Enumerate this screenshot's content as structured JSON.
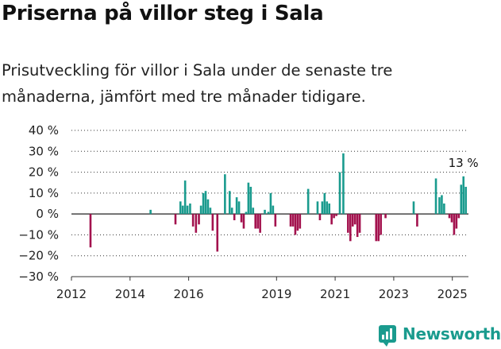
{
  "title": "Priserna på villor steg i Sala",
  "subtitle": "Prisutveckling för villor i Sala under de senaste tre månaderna, jämfört med tre månader tidigare.",
  "brand": {
    "name": "Newsworthy",
    "icon": "newsworthy-logo-icon"
  },
  "colors": {
    "positive": "#1a9b8e",
    "negative": "#a3124e",
    "axis": "#333333",
    "grid": "#333333"
  },
  "chart_data": {
    "type": "bar",
    "yTicks": [
      "40 %",
      "30 %",
      "20 %",
      "10 %",
      "0 %",
      "−10 %",
      "−20 %",
      "−30 %"
    ],
    "ylim": [
      -30,
      40
    ],
    "xTicks": [
      "2012",
      "2014",
      "2016",
      "2019",
      "2021",
      "2023",
      "2025"
    ],
    "xTickValues": [
      2012.0,
      2014.0,
      2016.0,
      2019.0,
      2021.0,
      2023.0,
      2025.0
    ],
    "xlim": [
      2012.0,
      2025.55
    ],
    "annotation": {
      "text": "13 %",
      "x": 2025.35,
      "y": 13
    },
    "bars": [
      [
        2012.65,
        -16
      ],
      [
        2014.7,
        2
      ],
      [
        2015.55,
        -5
      ],
      [
        2015.72,
        6
      ],
      [
        2015.8,
        4
      ],
      [
        2015.88,
        16
      ],
      [
        2015.96,
        4
      ],
      [
        2016.05,
        5
      ],
      [
        2016.15,
        -6
      ],
      [
        2016.25,
        -9
      ],
      [
        2016.35,
        -5
      ],
      [
        2016.42,
        4
      ],
      [
        2016.5,
        10
      ],
      [
        2016.58,
        11
      ],
      [
        2016.66,
        7
      ],
      [
        2016.74,
        3
      ],
      [
        2016.82,
        -8
      ],
      [
        2016.98,
        -18
      ],
      [
        2017.24,
        19
      ],
      [
        2017.4,
        11
      ],
      [
        2017.48,
        3
      ],
      [
        2017.56,
        -3
      ],
      [
        2017.64,
        8
      ],
      [
        2017.72,
        6
      ],
      [
        2017.8,
        -4
      ],
      [
        2017.88,
        -7
      ],
      [
        2017.96,
        1
      ],
      [
        2018.04,
        15
      ],
      [
        2018.12,
        13
      ],
      [
        2018.2,
        3
      ],
      [
        2018.28,
        -7
      ],
      [
        2018.36,
        -7
      ],
      [
        2018.44,
        -9
      ],
      [
        2018.6,
        2
      ],
      [
        2018.72,
        1
      ],
      [
        2018.8,
        10
      ],
      [
        2018.88,
        4
      ],
      [
        2018.96,
        -6
      ],
      [
        2019.48,
        -6
      ],
      [
        2019.56,
        -6
      ],
      [
        2019.64,
        -10
      ],
      [
        2019.72,
        -8
      ],
      [
        2019.8,
        -7
      ],
      [
        2020.08,
        12
      ],
      [
        2020.4,
        6
      ],
      [
        2020.48,
        -3
      ],
      [
        2020.56,
        6
      ],
      [
        2020.64,
        10
      ],
      [
        2020.72,
        6
      ],
      [
        2020.8,
        5
      ],
      [
        2020.88,
        -5
      ],
      [
        2020.96,
        -2
      ],
      [
        2021.04,
        -1
      ],
      [
        2021.16,
        20
      ],
      [
        2021.28,
        29
      ],
      [
        2021.44,
        -9
      ],
      [
        2021.52,
        -13
      ],
      [
        2021.6,
        -6
      ],
      [
        2021.68,
        -5
      ],
      [
        2021.76,
        -11
      ],
      [
        2021.84,
        -9
      ],
      [
        2022.4,
        -13
      ],
      [
        2022.48,
        -13
      ],
      [
        2022.56,
        -10
      ],
      [
        2022.72,
        -2
      ],
      [
        2023.68,
        6
      ],
      [
        2023.8,
        -6
      ],
      [
        2024.44,
        17
      ],
      [
        2024.56,
        8
      ],
      [
        2024.64,
        9
      ],
      [
        2024.72,
        5
      ],
      [
        2024.9,
        -2
      ],
      [
        2024.98,
        -4
      ],
      [
        2025.06,
        -10
      ],
      [
        2025.14,
        -7
      ],
      [
        2025.22,
        -2
      ],
      [
        2025.3,
        14
      ],
      [
        2025.38,
        18
      ],
      [
        2025.46,
        13
      ]
    ]
  }
}
